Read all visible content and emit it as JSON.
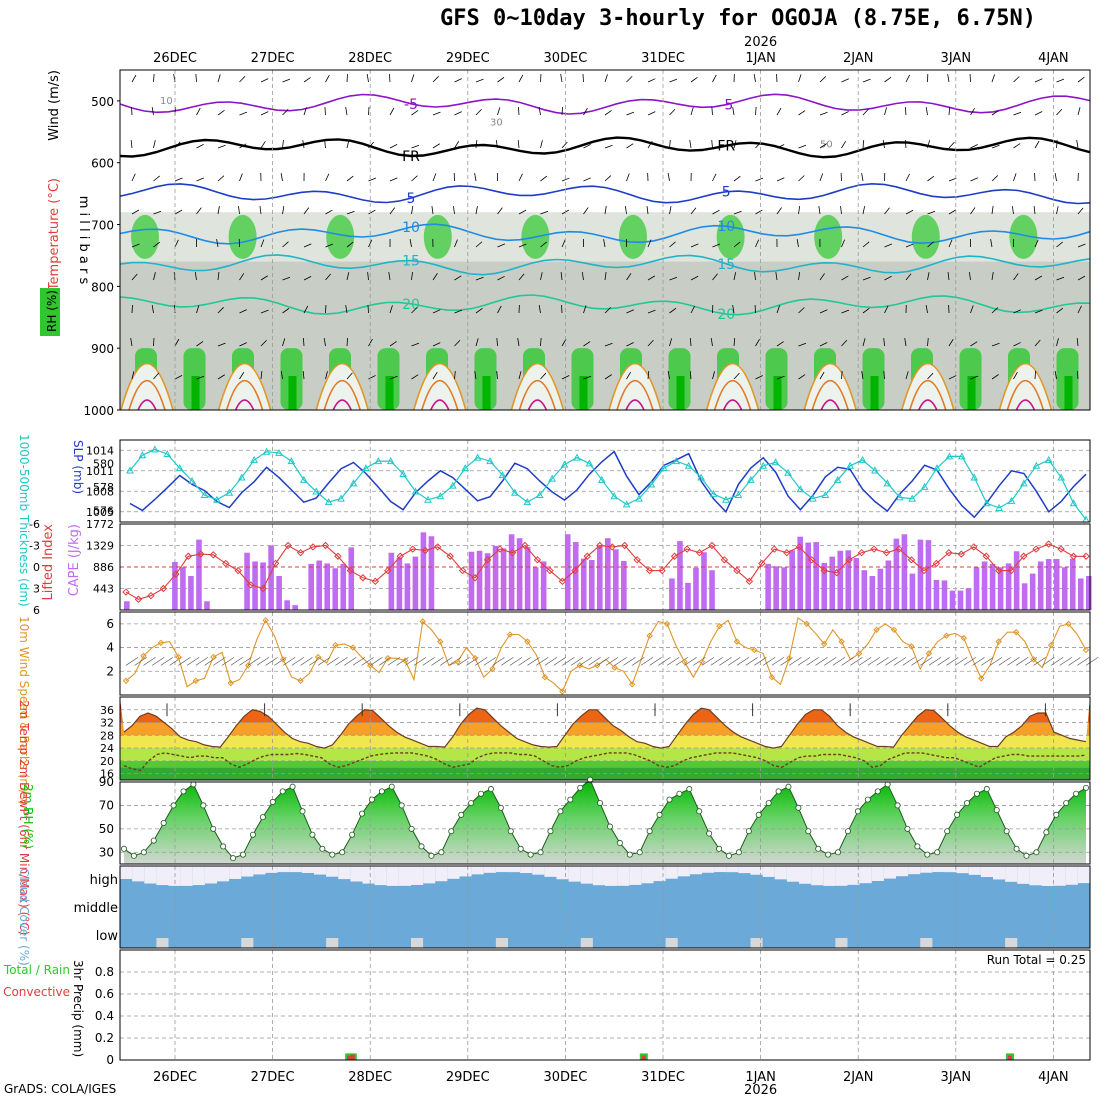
{
  "title": "GFS 0~10day 3-hourly for OGOJA (8.75E, 6.75N)",
  "credit": "GrADS: COLA/IGES",
  "year_label": "2026",
  "days": [
    "26DEC",
    "27DEC",
    "28DEC",
    "29DEC",
    "30DEC",
    "31DEC",
    "1JAN",
    "2JAN",
    "3JAN",
    "4JAN"
  ],
  "colors": {
    "rh_green": "#2ec82e",
    "rh_gray": "#c8cdc8",
    "temp_label": "#e23c3c",
    "wind_label": "#000000",
    "rh_label": "#00c800",
    "slp": "#1e3cc8",
    "thickness": "#20c8c8",
    "lifted": "#e03c3c",
    "cape": "#c06cf0",
    "wind10": "#e09628",
    "precip_total": "#2ec82e",
    "precip_conv": "#e03c3c",
    "cloud_blue": "#6aa9d8"
  },
  "chart_data": [
    {
      "type": "heatmap",
      "name": "upper-air cross section",
      "ylabel": "m i l l i b a r s",
      "legend_labels": [
        "Wind (m/s)",
        "Temperature (°C)",
        "RH (%)"
      ],
      "y_ticks": [
        500,
        600,
        700,
        800,
        900,
        1000
      ],
      "ylim": [
        1000,
        450
      ],
      "temperature_contours": [
        {
          "label": "-5",
          "pressure_mb": 505
        },
        {
          "label": "FR",
          "pressure_mb": 575
        },
        {
          "label": "5",
          "pressure_mb": 650
        },
        {
          "label": "10",
          "pressure_mb": 715
        },
        {
          "label": "15",
          "pressure_mb": 765
        },
        {
          "label": "20",
          "pressure_mb": 830
        }
      ],
      "rh_contour_labels": [
        "10",
        "30",
        "50"
      ]
    },
    {
      "type": "line",
      "name": "slp-thickness",
      "y_ticks_left": [
        576,
        578,
        580
      ],
      "y_ticks_right": [
        1005,
        1008,
        1011,
        1014
      ],
      "ylabel_left": "1000-500mb Thickness (dm)",
      "ylabel_right": "SLP (mb)",
      "ylim_left": [
        575,
        582
      ],
      "ylim_right": [
        1003.5,
        1015.5
      ],
      "series": [
        {
          "name": "SLP",
          "axis": "right",
          "values": [
            1006.2,
            1005.2,
            1006.8,
            1008.5,
            1010.3,
            1009.0,
            1008.1,
            1006.5,
            1005.6,
            1007.8,
            1009.4,
            1011.5,
            1010.0,
            1008.2,
            1006.4,
            1007.0,
            1009.2,
            1011.3,
            1012.2,
            1010.6,
            1008.6,
            1006.5,
            1005.3,
            1007.8,
            1009.5,
            1011.0,
            1010.0,
            1008.3,
            1006.6,
            1007.2,
            1009.5,
            1012.1,
            1011.3,
            1009.5,
            1007.9,
            1006.7,
            1008.2,
            1010.5,
            1012.3,
            1013.8,
            1010.2,
            1007.5,
            1009.4,
            1011.8,
            1012.6,
            1013.5,
            1009.5,
            1006.9,
            1005.0,
            1009.0,
            1011.4,
            1012.9,
            1010.8,
            1007.3,
            1005.3,
            1007.4,
            1010.1,
            1011.5,
            1011.2,
            1008.3,
            1006.5,
            1005.1,
            1007.6,
            1009.5,
            1011.8,
            1011.1,
            1008.3,
            1005.9,
            1004.2,
            1006.3,
            1008.8,
            1011.0,
            1010.6,
            1008.0,
            1005.0,
            1006.5,
            1008.7,
            1010.5
          ]
        },
        {
          "name": "1000-500mb Thickness",
          "axis": "left",
          "values": [
            579.4,
            580.7,
            581.2,
            580.8,
            579.6,
            578.5,
            577.3,
            576.9,
            577.5,
            578.8,
            580.3,
            581.0,
            580.9,
            580.2,
            578.6,
            577.6,
            576.7,
            577.0,
            578.3,
            579.6,
            580.2,
            580.2,
            579.1,
            577.6,
            576.9,
            577.2,
            578.1,
            579.6,
            580.5,
            580.2,
            579.0,
            577.5,
            576.7,
            577.3,
            578.7,
            579.9,
            580.5,
            580.0,
            578.6,
            577.2,
            576.5,
            577.0,
            578.2,
            579.6,
            580.2,
            579.8,
            578.8,
            577.4,
            576.9,
            577.3,
            578.6,
            579.8,
            580.1,
            579.2,
            577.8,
            577.0,
            577.3,
            578.6,
            579.8,
            580.3,
            579.4,
            578.3,
            577.1,
            577.0,
            578.0,
            579.6,
            580.6,
            580.6,
            578.8,
            576.6,
            576.2,
            576.8,
            578.3,
            579.8,
            580.3,
            578.8,
            576.6,
            575.2
          ]
        }
      ]
    },
    {
      "type": "bar",
      "name": "cape-lifted",
      "y_ticks_left": [
        "-6",
        "-3",
        "0",
        "3",
        "6"
      ],
      "y_ticks_right": [
        443,
        886,
        1329,
        1772
      ],
      "ylabel_left": "Lifted Index",
      "ylabel_right": "CAPE (J/kg)",
      "ylim_left": [
        6,
        -6
      ],
      "ylim_right": [
        0,
        1772
      ],
      "series": [
        {
          "name": "CAPE",
          "axis": "right",
          "values": [
            180,
            0,
            0,
            0,
            0,
            0,
            990,
            880,
            700,
            1450,
            180,
            0,
            0,
            0,
            0,
            1180,
            1000,
            980,
            1330,
            700,
            200,
            100,
            0,
            950,
            1020,
            960,
            860,
            950,
            1290,
            0,
            0,
            0,
            0,
            1180,
            1080,
            960,
            1100,
            1600,
            1520,
            0,
            0,
            0,
            0,
            1200,
            1220,
            1170,
            1320,
            1270,
            1560,
            1480,
            1300,
            880,
            1000,
            0,
            0,
            1560,
            1400,
            1060,
            1030,
            1320,
            1480,
            1250,
            1010,
            0,
            0,
            0,
            0,
            0,
            650,
            1420,
            560,
            870,
            1190,
            820,
            0,
            0,
            0,
            0,
            0,
            0,
            950,
            900,
            880,
            1230,
            1510,
            1390,
            1400,
            970,
            1100,
            1220,
            1230,
            1070,
            820,
            700,
            850,
            1020,
            1470,
            1560,
            750,
            1450,
            1440,
            620,
            610,
            400,
            400,
            450,
            880,
            1000,
            950,
            880,
            960,
            1210,
            550,
            750,
            1000,
            1050,
            1050,
            880,
            1060,
            650,
            700
          ],
          "bar_days": true
        },
        {
          "name": "Lifted Index",
          "axis": "left",
          "values": [
            3.5,
            4.5,
            4.0,
            3.0,
            1.0,
            -1.5,
            -1.8,
            -1.7,
            -0.5,
            0.5,
            2.5,
            3.0,
            -0.5,
            -3.0,
            -2.0,
            -2.8,
            -3.0,
            -1.5,
            0.5,
            1.5,
            2.0,
            0.5,
            -1.5,
            -2.5,
            -2.3,
            -2.8,
            -1.5,
            0.5,
            1.5,
            -1.0,
            -2.5,
            -2.0,
            -3.0,
            -1.0,
            0.5,
            2.0,
            0.5,
            -1.5,
            -3.0,
            -2.8,
            -3.0,
            -1.0,
            0.5,
            0.5,
            -1.5,
            -2.5,
            -2.0,
            -3.0,
            -1.0,
            0.5,
            2.0,
            -0.5,
            -2.5,
            -2.0,
            -2.8,
            -1.0,
            0.5,
            0.8,
            -1.0,
            -2.0,
            -2.5,
            -2.0,
            -2.5,
            -1.0,
            0.5,
            -0.5,
            -2.0,
            -1.8,
            -2.8,
            -1.5,
            0.5,
            0.5,
            -1.5,
            -2.5,
            -3.2,
            -2.5,
            -1.5,
            -1.5
          ]
        }
      ]
    },
    {
      "type": "line",
      "name": "10m-wind",
      "ylabel": "10m Wind Speed & Barbs (m/s)",
      "y_ticks": [
        2,
        4,
        6
      ],
      "ylim": [
        0,
        7
      ],
      "series": [
        {
          "name": "10m Wind Speed",
          "values": [
            1.2,
            1.8,
            3.3,
            4.0,
            4.4,
            4.5,
            3.2,
            0.7,
            1.2,
            1.4,
            3.2,
            3.6,
            1.0,
            1.3,
            2.5,
            4.7,
            6.3,
            5.0,
            3.0,
            1.5,
            1.2,
            1.8,
            3.2,
            2.7,
            4.2,
            4.3,
            4.0,
            3.2,
            2.5,
            1.9,
            3.1,
            3.1,
            2.9,
            1.3,
            6.2,
            5.5,
            4.5,
            2.5,
            2.8,
            4.0,
            3.1,
            1.5,
            2.2,
            4.0,
            5.1,
            5.1,
            4.5,
            3.4,
            1.5,
            1.0,
            0.3,
            2.0,
            2.5,
            2.2,
            2.5,
            3.0,
            2.3,
            2.0,
            0.9,
            2.9,
            5.0,
            6.2,
            6.0,
            4.2,
            2.8,
            1.5,
            2.8,
            4.5,
            5.8,
            6.3,
            4.5,
            4.0,
            3.8,
            3.5,
            1.5,
            0.9,
            3.1,
            6.5,
            6.0,
            5.2,
            4.3,
            5.5,
            4.5,
            3.0,
            3.5,
            4.3,
            5.5,
            6.0,
            5.5,
            4.5,
            4.1,
            2.2,
            3.5,
            4.5,
            5.0,
            5.2,
            4.8,
            3.0,
            1.4,
            2.5,
            4.5,
            5.3,
            5.3,
            4.5,
            3.0,
            2.3,
            4.2,
            5.8,
            6.0,
            5.1,
            3.8
          ]
        }
      ]
    },
    {
      "type": "area",
      "name": "2m-temp",
      "ylabel": "2m Temp 2m DewPt (6hr Min/Max) (°C)",
      "y_ticks": [
        16,
        20,
        24,
        28,
        32,
        36
      ],
      "ylim": [
        14,
        40
      ],
      "series": [
        {
          "name": "2m Temp",
          "values": [
            29,
            31,
            34,
            35,
            34,
            32,
            30,
            27.5,
            26.5,
            26,
            25,
            24.5,
            24.3,
            27.5,
            31,
            34,
            36,
            35.5,
            34,
            31.5,
            29,
            27,
            26,
            25.5,
            24.5,
            24,
            25,
            28,
            31.5,
            34,
            36,
            35.8,
            33.5,
            31,
            29,
            27.5,
            26.5,
            25.5,
            24.5,
            24.5,
            24.3,
            27.5,
            31.5,
            34.5,
            36.5,
            36,
            33.5,
            31,
            29,
            27,
            26,
            25,
            24.5,
            24.3,
            24.5,
            28,
            31.5,
            34,
            36,
            36,
            33.5,
            31,
            29.5,
            27.5,
            26,
            25.5,
            24.5,
            24,
            24.5,
            28,
            31.5,
            34.5,
            36.5,
            36,
            33.5,
            31,
            29,
            27.5,
            26.5,
            25.5,
            24.5,
            24,
            24.5,
            28,
            31.5,
            34.5,
            36,
            36,
            34,
            31,
            29,
            27.5,
            26.5,
            25.5,
            24.5,
            24.5,
            24.3,
            28,
            31,
            34,
            36,
            35.8,
            33.5,
            31,
            29,
            27.5,
            26.5,
            25.5,
            24.5,
            24.5,
            27.5,
            29,
            31,
            34,
            35,
            35,
            29,
            28,
            27,
            26.5,
            26
          ]
        },
        {
          "name": "2m DewPt",
          "values": [
            18.5,
            17.5,
            17,
            20,
            22,
            22.5,
            22,
            21.5,
            21,
            21.5,
            21.5,
            21,
            21,
            19,
            18,
            19,
            20.5,
            21.5,
            22,
            22,
            22,
            22.3,
            22,
            21.5,
            21,
            19,
            18,
            18.5,
            19.5,
            20.5,
            21.5,
            22,
            22.3,
            22.5,
            22.5,
            22.5,
            22,
            21.5,
            20.5,
            19,
            18,
            18.5,
            19,
            21,
            22,
            22.5,
            22.5,
            22.5,
            22,
            22,
            21.5,
            20,
            18.5,
            18,
            18.5,
            20,
            21,
            21.5,
            22,
            22.5,
            22.5,
            22.5,
            22,
            21,
            20,
            18.5,
            18,
            18.5,
            20,
            21,
            21.5,
            22,
            22.5,
            22.5,
            22.5,
            22,
            21.5,
            21,
            20,
            18.5,
            18,
            19.5,
            21,
            21.5,
            21.5,
            22,
            22,
            22,
            21.5,
            21,
            20,
            18,
            18.5,
            20.5,
            21.5,
            22.5,
            22.5,
            22.5,
            22,
            21.5,
            21,
            21,
            20,
            19,
            18,
            19.5,
            21,
            21.5,
            22,
            22,
            21.5,
            21.5,
            21.5,
            21.5,
            21.5,
            21.5,
            21.5,
            21.8
          ]
        }
      ]
    },
    {
      "type": "area",
      "name": "2m-rh",
      "ylabel": "2m RH (%)",
      "y_ticks": [
        30,
        50,
        70,
        90
      ],
      "ylim": [
        20,
        90
      ],
      "series": [
        {
          "name": "2m RH",
          "values": [
            33,
            27,
            30,
            40,
            55,
            70,
            82,
            88,
            70,
            50,
            35,
            25,
            28,
            45,
            60,
            73,
            82,
            86,
            65,
            45,
            33,
            28,
            30,
            45,
            63,
            75,
            82,
            86,
            70,
            50,
            35,
            27,
            30,
            48,
            62,
            72,
            80,
            84,
            68,
            48,
            33,
            28,
            30,
            48,
            65,
            75,
            85,
            92,
            72,
            52,
            38,
            28,
            30,
            48,
            62,
            75,
            80,
            84,
            65,
            46,
            33,
            27,
            30,
            48,
            62,
            72,
            82,
            86,
            68,
            48,
            33,
            28,
            30,
            48,
            65,
            75,
            82,
            88,
            70,
            50,
            35,
            28,
            30,
            48,
            62,
            72,
            80,
            84,
            66,
            48,
            33,
            27,
            30,
            47,
            62,
            72,
            80,
            85
          ]
        }
      ]
    },
    {
      "type": "heatmap",
      "name": "cloud-cover",
      "ylabel": "Cloud Cover (%)",
      "levels": [
        "high",
        "middle",
        "low"
      ]
    },
    {
      "type": "bar",
      "name": "precip",
      "ylabel": "3hr Precip (mm)",
      "legend_labels": [
        "Total / Rain",
        "Convective"
      ],
      "y_ticks": [
        "0",
        "0.2",
        "0.4",
        "0.6",
        "0.8"
      ],
      "ylim": [
        0,
        1.0
      ],
      "run_total_label": "Run Total = 0.25",
      "series": [
        {
          "name": "Total / Rain",
          "values": [
            {
              "t": 18.9,
              "v": 0.06
            },
            {
              "t": 19.2,
              "v": 0.06
            },
            {
              "t": 43.2,
              "v": 0.06
            },
            {
              "t": 73.4,
              "v": 0.06
            }
          ]
        },
        {
          "name": "Convective",
          "values": [
            {
              "t": 18.9,
              "v": 0.04
            },
            {
              "t": 19.2,
              "v": 0.05
            },
            {
              "t": 43.2,
              "v": 0.04
            },
            {
              "t": 73.4,
              "v": 0.04
            }
          ]
        }
      ]
    }
  ]
}
